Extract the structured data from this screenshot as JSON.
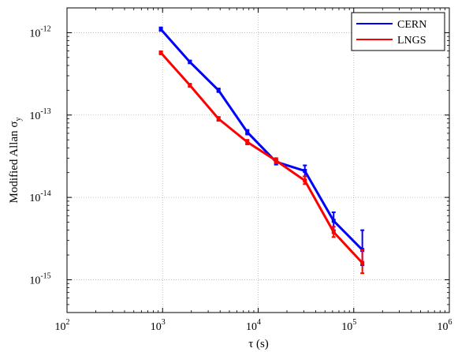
{
  "chart_data": {
    "type": "line",
    "title": "",
    "xlabel": "τ (s)",
    "ylabel": "Modified Allan σ",
    "ylabel_sub": "y",
    "x_scale": "log",
    "y_scale": "log",
    "xlim": [
      100,
      1000000
    ],
    "ylim": [
      4e-16,
      2e-12
    ],
    "grid": true,
    "legend_position": "top-right",
    "x_ticks": [
      {
        "base": "10",
        "exp": "2"
      },
      {
        "base": "10",
        "exp": "3"
      },
      {
        "base": "10",
        "exp": "4"
      },
      {
        "base": "10",
        "exp": "5"
      },
      {
        "base": "10",
        "exp": "6"
      }
    ],
    "y_ticks": [
      {
        "base": "10",
        "exp": "-15"
      },
      {
        "base": "10",
        "exp": "-14"
      },
      {
        "base": "10",
        "exp": "-13"
      },
      {
        "base": "10",
        "exp": "-12"
      }
    ],
    "series": [
      {
        "name": "CERN",
        "color": "#0000ff",
        "x": [
          960,
          1930,
          3850,
          7700,
          15400,
          30800,
          61600,
          123000
        ],
        "y": [
          1.1e-12,
          4.4e-13,
          2e-13,
          6.2e-14,
          2.7e-14,
          2.1e-14,
          5.2e-15,
          2.3e-15
        ],
        "err_low": [
          1.05e-12,
          4.25e-13,
          1.9e-13,
          5.8e-14,
          2.5e-14,
          1.8e-14,
          4e-15,
          1.5e-15
        ],
        "err_high": [
          1.16e-12,
          4.6e-13,
          2.1e-13,
          6.6e-14,
          2.9e-14,
          2.45e-14,
          6.6e-15,
          4e-15
        ]
      },
      {
        "name": "LNGS",
        "color": "#ff0000",
        "x": [
          960,
          1930,
          3850,
          7700,
          15400,
          30800,
          61600,
          123000
        ],
        "y": [
          5.7e-13,
          2.3e-13,
          9e-14,
          4.7e-14,
          2.8e-14,
          1.6e-14,
          3.8e-15,
          1.6e-15
        ],
        "err_low": [
          5.45e-13,
          2.2e-13,
          8.5e-14,
          4.4e-14,
          2.6e-14,
          1.45e-14,
          3.3e-15,
          1.2e-15
        ],
        "err_high": [
          5.95e-13,
          2.4e-13,
          9.5e-14,
          5e-14,
          3e-14,
          1.8e-14,
          4.4e-15,
          2.3e-15
        ]
      }
    ]
  }
}
